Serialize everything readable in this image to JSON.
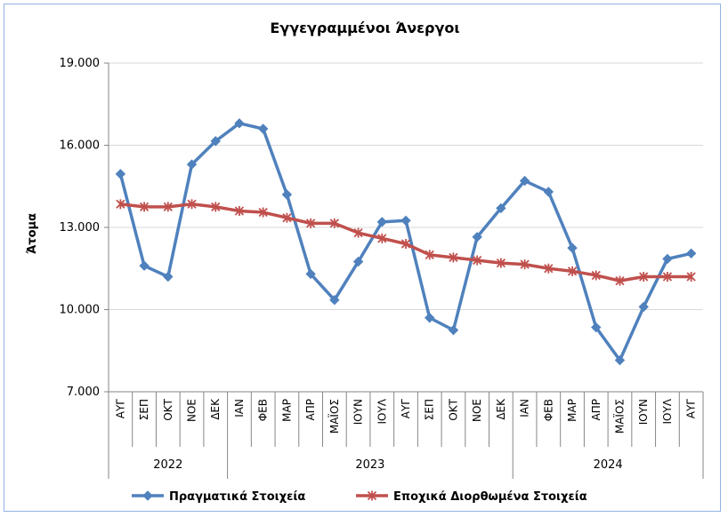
{
  "chart_data": {
    "type": "line",
    "title": "Εγγεγραμμένοι Άνεργοι",
    "ylabel": "Άτομα",
    "xlabel": "",
    "ylim": [
      7000,
      19000
    ],
    "yticks": [
      "7.000",
      "10.000",
      "13.000",
      "16.000",
      "19.000"
    ],
    "ytick_values": [
      7000,
      10000,
      13000,
      16000,
      19000
    ],
    "grid": true,
    "legend_position": "bottom",
    "categories": [
      "ΑΥΓ",
      "ΣΕΠ",
      "ΟΚΤ",
      "ΝΟΕ",
      "ΔΕΚ",
      "ΙΑΝ",
      "ΦΕΒ",
      "ΜΑΡ",
      "ΑΠΡ",
      "ΜΑΪΟΣ",
      "ΙΟΥΝ",
      "ΙΟΥΛ",
      "ΑΥΓ",
      "ΣΕΠ",
      "ΟΚΤ",
      "ΝΟΕ",
      "ΔΕΚ",
      "ΙΑΝ",
      "ΦΕΒ",
      "ΜΑΡ",
      "ΑΠΡ",
      "ΜΑΪΟΣ",
      "ΙΟΥΝ",
      "ΙΟΥΛ",
      "ΑΥΓ"
    ],
    "year_groups": [
      {
        "label": "2022",
        "count": 5
      },
      {
        "label": "2023",
        "count": 12
      },
      {
        "label": "2024",
        "count": 8
      }
    ],
    "series": [
      {
        "name": "Πραγματικά Στοιχεία",
        "color": "#4f81bd",
        "marker": "diamond",
        "values": [
          14950,
          11600,
          11200,
          15300,
          16150,
          16800,
          16600,
          14200,
          11300,
          10350,
          11750,
          13200,
          13250,
          9700,
          9250,
          12650,
          13700,
          14700,
          14300,
          12250,
          9350,
          8150,
          10100,
          11850,
          12050
        ]
      },
      {
        "name": "Εποχικά Διορθωμένα Στοιχεία",
        "color": "#c0504d",
        "marker": "star",
        "values": [
          13850,
          13750,
          13750,
          13850,
          13750,
          13600,
          13550,
          13350,
          13150,
          13150,
          12800,
          12600,
          12400,
          12000,
          11900,
          11800,
          11700,
          11650,
          11500,
          11400,
          11250,
          11050,
          11200,
          11200,
          11200
        ]
      }
    ]
  }
}
